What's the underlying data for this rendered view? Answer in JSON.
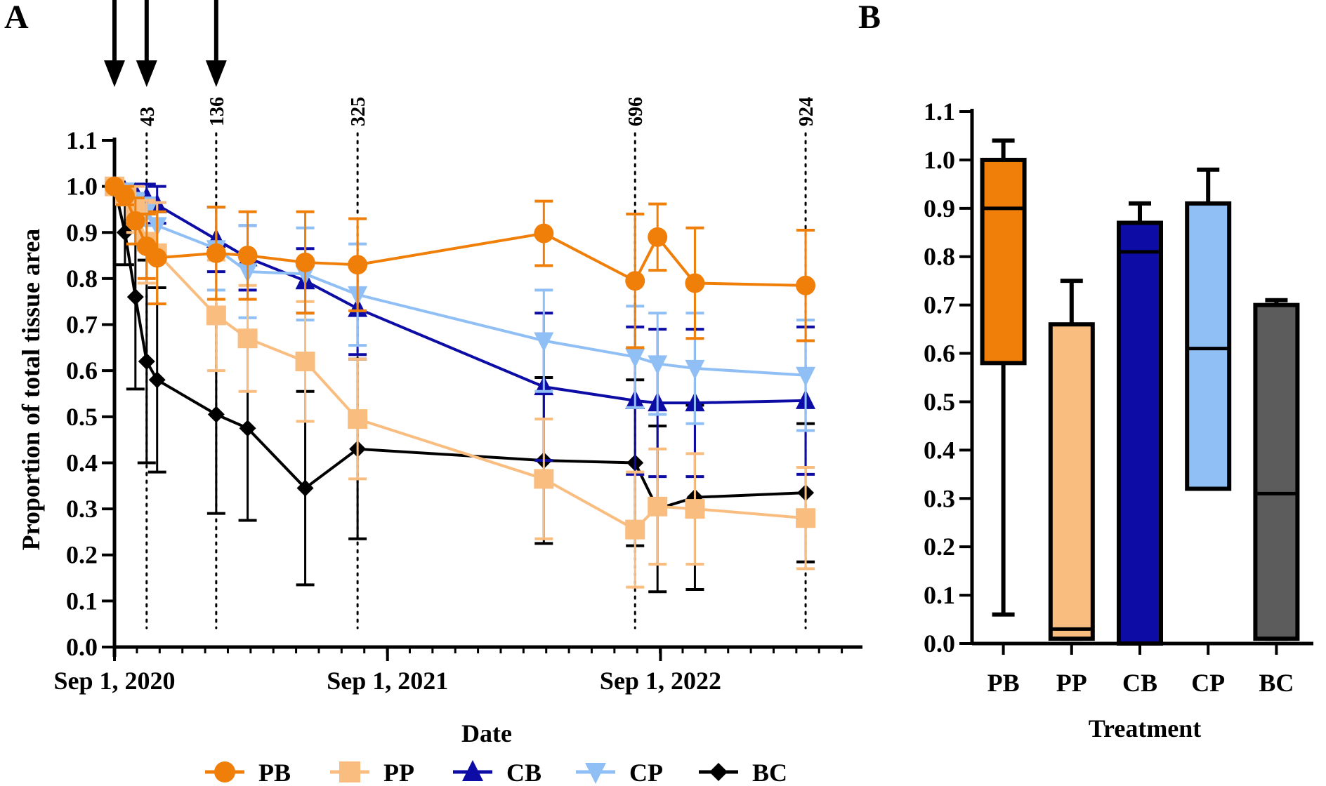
{
  "chart_data": [
    {
      "type": "line",
      "panel": "A",
      "xlabel": "Date",
      "ylabel": "Proportion of total tissue area",
      "ylim": [
        0.0,
        1.1
      ],
      "yticks": [
        "0.0",
        "0.1",
        "0.2",
        "0.3",
        "0.4",
        "0.5",
        "0.6",
        "0.7",
        "0.8",
        "0.9",
        "1.0",
        "1.1"
      ],
      "x_unit": "days since Sep 1, 2020",
      "xlim": [
        0,
        1000
      ],
      "xtick_labels": [
        {
          "day": 0,
          "label": "Sep 1, 2020"
        },
        {
          "day": 365,
          "label": "Sep 1, 2021"
        },
        {
          "day": 730,
          "label": "Sep 1, 2022"
        }
      ],
      "intervention_arrows_days": [
        0,
        43,
        136
      ],
      "vertical_lines": [
        {
          "day": 43,
          "label": "43"
        },
        {
          "day": 136,
          "label": "136"
        },
        {
          "day": 325,
          "label": "325"
        },
        {
          "day": 696,
          "label": "696"
        },
        {
          "day": 924,
          "label": "924"
        }
      ],
      "series": [
        {
          "name": "PB",
          "color": "#F07F0A",
          "marker": "circle",
          "x": [
            0,
            14,
            28,
            43,
            57,
            136,
            178,
            255,
            325,
            574,
            696,
            726,
            776,
            924
          ],
          "values": [
            1.0,
            0.98,
            0.925,
            0.87,
            0.845,
            0.855,
            0.85,
            0.835,
            0.83,
            0.898,
            0.795,
            0.89,
            0.79,
            0.785
          ],
          "errors": [
            0.0,
            0.02,
            0.05,
            0.07,
            0.1,
            0.1,
            0.095,
            0.11,
            0.1,
            0.07,
            0.145,
            0.072,
            0.12,
            0.12
          ]
        },
        {
          "name": "PP",
          "color": "#F9BD80",
          "marker": "square",
          "x": [
            0,
            14,
            28,
            43,
            57,
            136,
            178,
            255,
            325,
            574,
            696,
            726,
            776,
            924
          ],
          "values": [
            1.0,
            0.98,
            0.95,
            0.88,
            0.855,
            0.72,
            0.67,
            0.62,
            0.495,
            0.365,
            0.255,
            0.305,
            0.3,
            0.28
          ],
          "errors": [
            0.0,
            0.02,
            0.05,
            0.09,
            0.11,
            0.12,
            0.115,
            0.13,
            0.13,
            0.13,
            0.125,
            0.125,
            0.12,
            0.11
          ]
        },
        {
          "name": "CB",
          "color": "#0D0DA6",
          "marker": "triangle-up",
          "x": [
            0,
            14,
            28,
            43,
            57,
            136,
            178,
            255,
            325,
            574,
            696,
            726,
            776,
            924
          ],
          "values": [
            1.0,
            0.99,
            0.985,
            0.975,
            0.96,
            0.885,
            0.845,
            0.795,
            0.735,
            0.565,
            0.535,
            0.53,
            0.53,
            0.535
          ],
          "errors": [
            0.0,
            0.01,
            0.02,
            0.03,
            0.04,
            0.07,
            0.07,
            0.07,
            0.1,
            0.16,
            0.16,
            0.16,
            0.16,
            0.16
          ]
        },
        {
          "name": "CP",
          "color": "#90BFF5",
          "marker": "triangle-down",
          "x": [
            0,
            14,
            28,
            43,
            57,
            136,
            178,
            255,
            325,
            574,
            696,
            726,
            776,
            924
          ],
          "values": [
            1.0,
            0.99,
            0.965,
            0.945,
            0.915,
            0.865,
            0.815,
            0.81,
            0.765,
            0.665,
            0.63,
            0.615,
            0.605,
            0.59
          ],
          "errors": [
            0.0,
            0.01,
            0.02,
            0.03,
            0.05,
            0.09,
            0.1,
            0.1,
            0.11,
            0.11,
            0.11,
            0.11,
            0.12,
            0.12
          ]
        },
        {
          "name": "BC",
          "color": "#000000",
          "marker": "diamond",
          "x": [
            0,
            14,
            28,
            43,
            57,
            136,
            178,
            255,
            325,
            574,
            696,
            726,
            776,
            924
          ],
          "values": [
            1.0,
            0.9,
            0.76,
            0.62,
            0.58,
            0.505,
            0.475,
            0.345,
            0.43,
            0.405,
            0.4,
            0.3,
            0.325,
            0.335
          ],
          "errors": [
            0.0,
            0.07,
            0.2,
            0.22,
            0.2,
            0.215,
            0.2,
            0.21,
            0.195,
            0.18,
            0.18,
            0.18,
            0.2,
            0.15
          ]
        }
      ]
    },
    {
      "type": "box",
      "panel": "B",
      "xlabel": "Treatment",
      "ylabel": "",
      "ylim": [
        0.0,
        1.1
      ],
      "yticks": [
        "0.0",
        "0.1",
        "0.2",
        "0.3",
        "0.4",
        "0.5",
        "0.6",
        "0.7",
        "0.8",
        "0.9",
        "1.0",
        "1.1"
      ],
      "categories": [
        "PB",
        "PP",
        "CB",
        "CP",
        "BC"
      ],
      "boxes": [
        {
          "name": "PB",
          "color": "#F07F0A",
          "min": 0.06,
          "q1": 0.58,
          "median": 0.9,
          "q3": 1.0,
          "max": 1.04
        },
        {
          "name": "PP",
          "color": "#F9BD80",
          "min": 0.01,
          "q1": 0.01,
          "median": 0.03,
          "q3": 0.66,
          "max": 0.75
        },
        {
          "name": "CB",
          "color": "#0D0DA6",
          "min": 0.0,
          "q1": 0.0,
          "median": 0.81,
          "q3": 0.87,
          "max": 0.91
        },
        {
          "name": "CP",
          "color": "#90BFF5",
          "min": 0.32,
          "q1": 0.32,
          "median": 0.61,
          "q3": 0.91,
          "max": 0.98
        },
        {
          "name": "BC",
          "color": "#5C5C5C",
          "min": 0.01,
          "q1": 0.01,
          "median": 0.31,
          "q3": 0.7,
          "max": 0.71
        }
      ]
    }
  ]
}
